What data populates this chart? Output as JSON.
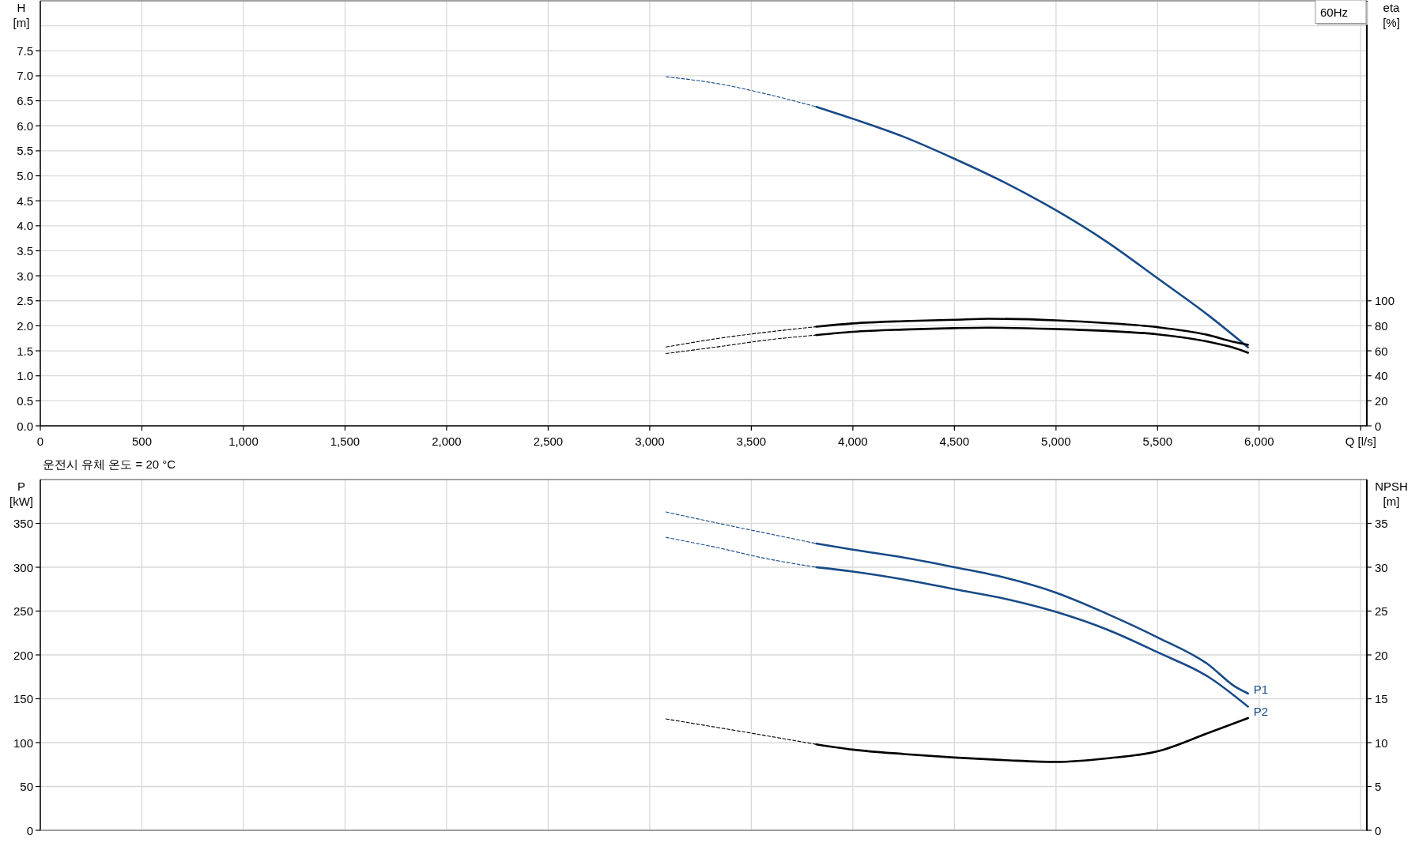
{
  "chart_data": [
    {
      "type": "line",
      "ylabel": "H [m]",
      "y2label": "eta [%]",
      "annotations": [
        "60Hz"
      ],
      "grid": true,
      "xlim": [
        0,
        6530
      ],
      "xticks": [
        0,
        500,
        {
          "value": 1000,
          "label": "1,000"
        },
        {
          "value": 1500,
          "label": "1,500"
        },
        {
          "value": 2000,
          "label": "2,000"
        },
        {
          "value": 2500,
          "label": "2,500"
        },
        {
          "value": 3000,
          "label": "3,000"
        },
        {
          "value": 3500,
          "label": "3,500"
        },
        {
          "value": 4000,
          "label": "4,000"
        },
        {
          "value": 4500,
          "label": "4,500"
        },
        {
          "value": 5000,
          "label": "5,000"
        },
        {
          "value": 5500,
          "label": "5,500"
        },
        {
          "value": 6000,
          "label": "6,000"
        },
        {
          "value": 6500,
          "label": "Q [l/s]"
        }
      ],
      "ylim": [
        0,
        8.5
      ],
      "yticks": [
        {
          "value": 0,
          "label": "0.0"
        },
        0.5,
        {
          "value": 1,
          "label": "1.0"
        },
        1.5,
        {
          "value": 2,
          "label": "2.0"
        },
        2.5,
        {
          "value": 3,
          "label": "3.0"
        },
        3.5,
        {
          "value": 4,
          "label": "4.0"
        },
        4.5,
        {
          "value": 5,
          "label": "5.0"
        },
        5.5,
        {
          "value": 6,
          "label": "6.0"
        },
        6.5,
        {
          "value": 7,
          "label": "7.0"
        },
        7.5,
        {
          "value": 8,
          "label": null
        }
      ],
      "y2lim": [
        0,
        340
      ],
      "y2ticks": [
        0,
        20,
        40,
        60,
        80,
        100
      ],
      "series": [
        {
          "color": "#184a87",
          "line_style": "dashed",
          "x": [
            3080,
            3340,
            3570,
            3820
          ],
          "values": [
            6.98,
            6.84,
            6.64,
            6.38
          ]
        },
        {
          "color": "#184a87",
          "line_style": "solid",
          "x": [
            3820,
            4000,
            4250,
            4500,
            4750,
            5000,
            5250,
            5500,
            5750,
            5945
          ],
          "values": [
            6.38,
            6.14,
            5.78,
            5.34,
            4.86,
            4.31,
            3.68,
            2.95,
            2.21,
            1.57
          ]
        },
        {
          "color": "#000000",
          "line_style": "dashed",
          "axis": "y2",
          "x": [
            3080,
            3340,
            3570,
            3820
          ],
          "values": [
            63.0,
            70.0,
            74.8,
            79.3
          ]
        },
        {
          "color": "#000000",
          "line_style": "solid",
          "axis": "y2",
          "x": [
            3820,
            4000,
            4250,
            4500,
            4670,
            5000,
            5250,
            5500,
            5750,
            5870,
            5945
          ],
          "values": [
            79.3,
            81.9,
            83.7,
            84.8,
            85.6,
            84.4,
            82.2,
            78.9,
            72.6,
            67.3,
            64.8
          ]
        },
        {
          "color": "#000000",
          "line_style": "dashed",
          "axis": "y2",
          "x": [
            3080,
            3340,
            3570,
            3820
          ],
          "values": [
            57.8,
            63.3,
            68.5,
            72.6
          ]
        },
        {
          "color": "#000000",
          "line_style": "solid",
          "axis": "y2",
          "x": [
            3820,
            4000,
            4250,
            4500,
            4670,
            5000,
            5250,
            5500,
            5750,
            5870,
            5945
          ],
          "values": [
            72.6,
            75.2,
            77.0,
            78.1,
            78.5,
            77.4,
            75.9,
            73.2,
            67.3,
            62.7,
            58.5
          ]
        }
      ]
    },
    {
      "type": "line",
      "ylabel": "P [kW]",
      "y2label": "NPSH [m]",
      "annotations": [
        "운전시 유체 온도 = 20 °C"
      ],
      "grid": true,
      "tick_labels": "y",
      "xlim": [
        0,
        6530
      ],
      "xticks": [
        0,
        500,
        1000,
        1500,
        2000,
        2500,
        3000,
        3500,
        4000,
        4500,
        5000,
        5500,
        6000,
        6500
      ],
      "ylim": [
        0,
        400
      ],
      "yticks": [
        0,
        50,
        100,
        150,
        200,
        250,
        300,
        350
      ],
      "y2lim": [
        0,
        40
      ],
      "y2ticks": [
        0,
        5,
        10,
        15,
        20,
        25,
        30,
        35
      ],
      "series": [
        {
          "color": "#184a87",
          "line_style": "dashed",
          "x": [
            3080,
            3340,
            3570,
            3820
          ],
          "values": [
            363,
            350,
            339,
            327
          ]
        },
        {
          "name": "P1",
          "color": "#184a87",
          "line_style": "solid",
          "x": [
            3820,
            4000,
            4250,
            4500,
            4750,
            5000,
            5250,
            5500,
            5750,
            5880,
            5945
          ],
          "values": [
            327,
            320,
            311,
            300,
            288,
            271,
            247,
            220,
            189,
            164,
            156
          ]
        },
        {
          "color": "#184a87",
          "line_style": "dashed",
          "x": [
            3080,
            3340,
            3570,
            3820
          ],
          "values": [
            334,
            322,
            310,
            300
          ]
        },
        {
          "name": "P2",
          "color": "#184a87",
          "line_style": "solid",
          "x": [
            3820,
            4000,
            4250,
            4500,
            4750,
            5000,
            5250,
            5500,
            5750,
            5945
          ],
          "values": [
            300,
            295,
            286,
            275,
            264,
            249,
            229,
            203,
            175,
            141
          ]
        },
        {
          "color": "#000000",
          "line_style": "dashed",
          "axis": "y2",
          "x": [
            3080,
            3340,
            3570,
            3820
          ],
          "values": [
            12.7,
            11.7,
            10.8,
            9.8
          ]
        },
        {
          "color": "#000000",
          "line_style": "solid",
          "axis": "y2",
          "x": [
            3820,
            4000,
            4250,
            4500,
            4750,
            5000,
            5250,
            5500,
            5750,
            5945
          ],
          "values": [
            9.8,
            9.2,
            8.7,
            8.3,
            8.0,
            7.8,
            8.2,
            9.0,
            11.1,
            12.8
          ]
        }
      ]
    }
  ]
}
